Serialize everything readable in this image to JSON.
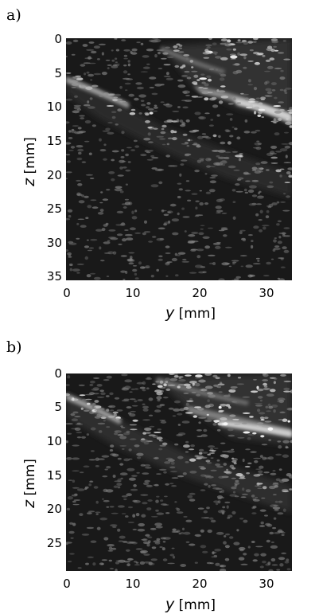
{
  "panels": [
    {
      "label": "a)",
      "yticks": [
        "0",
        "5",
        "10",
        "15",
        "20",
        "25",
        "30",
        "35"
      ],
      "xticks": [
        "0",
        "10",
        "20",
        "30"
      ],
      "xlabel_var": "y",
      "xlabel_unit": "[mm]",
      "ylabel_var": "z",
      "ylabel_unit": "[mm]",
      "x_range_mm": [
        0,
        37
      ],
      "z_range_mm": [
        0,
        36
      ]
    },
    {
      "label": "b)",
      "yticks": [
        "0",
        "5",
        "10",
        "15",
        "20",
        "25"
      ],
      "xticks": [
        "0",
        "10",
        "20",
        "30"
      ],
      "xlabel_var": "y",
      "xlabel_unit": "[mm]",
      "ylabel_var": "z",
      "ylabel_unit": "[mm]",
      "x_range_mm": [
        0,
        37
      ],
      "z_range_mm": [
        0,
        30
      ]
    }
  ],
  "colors": {
    "background": "#191919",
    "speckle": "#ffffff"
  }
}
